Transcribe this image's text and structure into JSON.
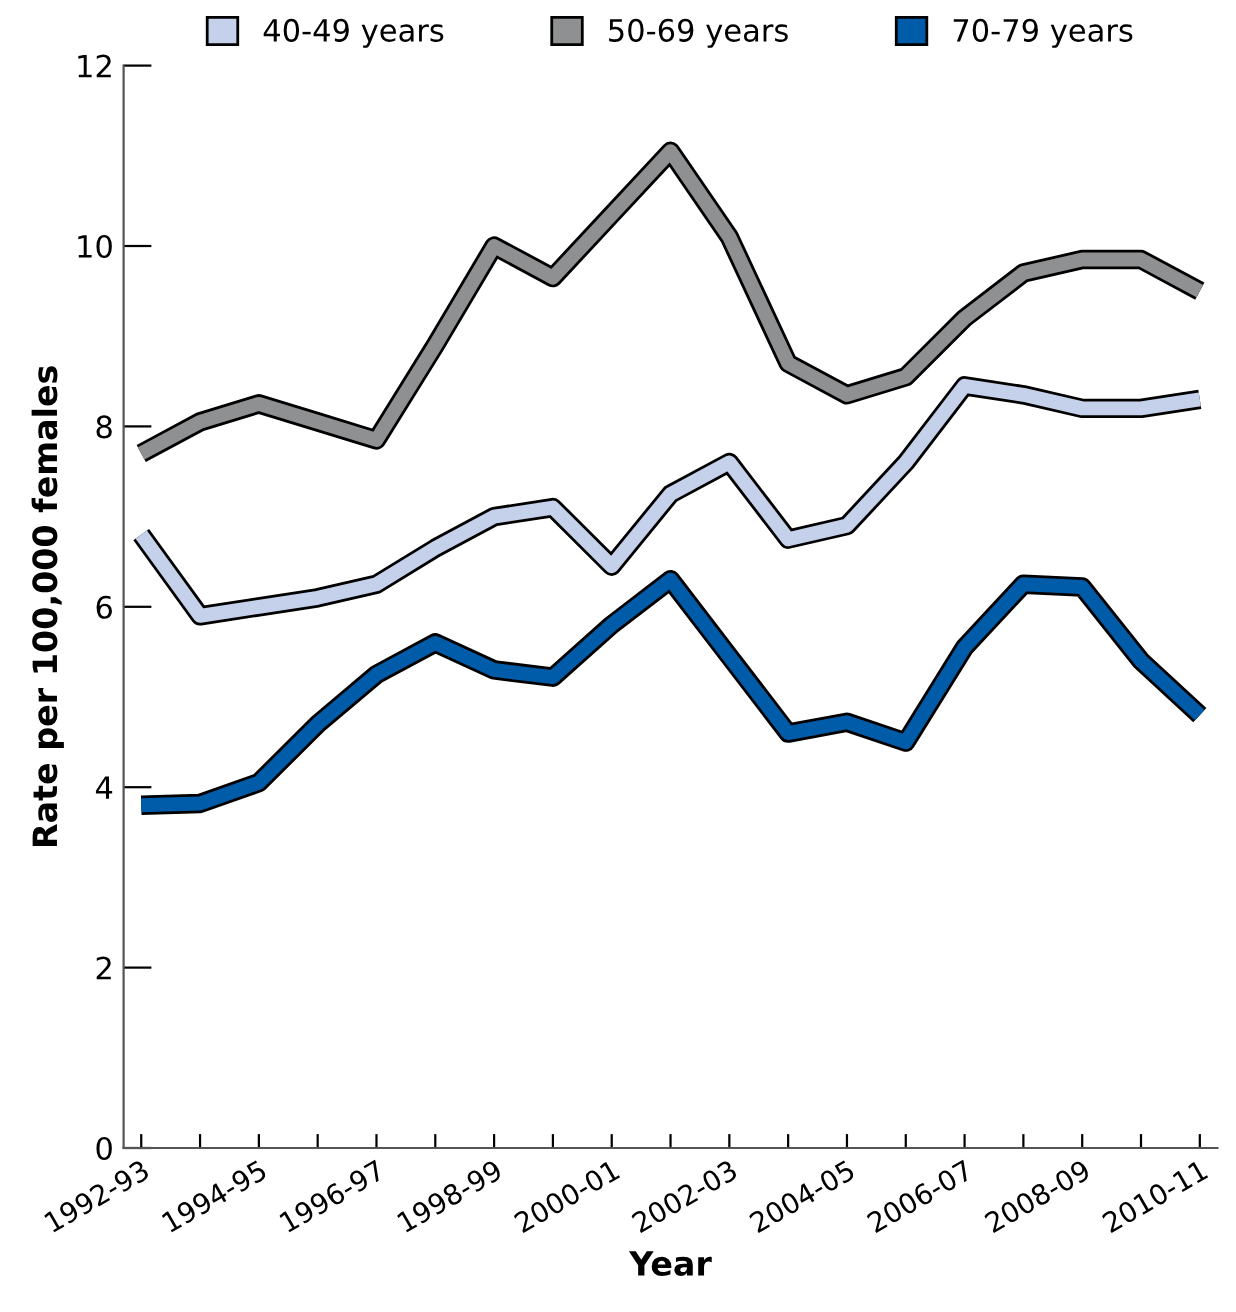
{
  "chart_data": {
    "type": "line",
    "xlabel": "Year",
    "ylabel": "Rate per 100,000 females",
    "categories": [
      "1992-93",
      null,
      "1994-95",
      null,
      "1996-97",
      null,
      "1998-99",
      null,
      "2000-01",
      null,
      "2002-03",
      null,
      "2004-05",
      null,
      "2006-07",
      null,
      "2008-09",
      null,
      "2010-11"
    ],
    "series": [
      {
        "name": "40-49 years",
        "color": "#c5d1ea",
        "values": [
          6.8,
          5.9,
          6.0,
          6.1,
          6.25,
          6.65,
          7.0,
          7.1,
          6.45,
          7.25,
          7.6,
          6.75,
          6.9,
          7.6,
          8.45,
          8.35,
          8.2,
          8.2,
          8.3
        ]
      },
      {
        "name": "50-69 years",
        "color": "#8f9092",
        "values": [
          7.7,
          8.05,
          8.25,
          8.05,
          7.85,
          8.9,
          10.0,
          9.65,
          10.35,
          11.05,
          10.1,
          8.7,
          8.35,
          8.55,
          9.2,
          9.7,
          9.85,
          9.85,
          9.5
        ]
      },
      {
        "name": "70-79 years",
        "color": "#005ca8",
        "values": [
          3.8,
          3.82,
          4.05,
          4.7,
          5.25,
          5.6,
          5.3,
          5.22,
          5.8,
          6.3,
          5.45,
          4.6,
          4.72,
          4.5,
          5.55,
          6.25,
          6.22,
          5.4,
          4.8
        ]
      }
    ],
    "ylim": [
      0,
      12
    ],
    "yticks": [
      0,
      2,
      4,
      6,
      8,
      10,
      12
    ],
    "grid": false,
    "legend": "top",
    "marker": "none",
    "line_style": "solid"
  }
}
